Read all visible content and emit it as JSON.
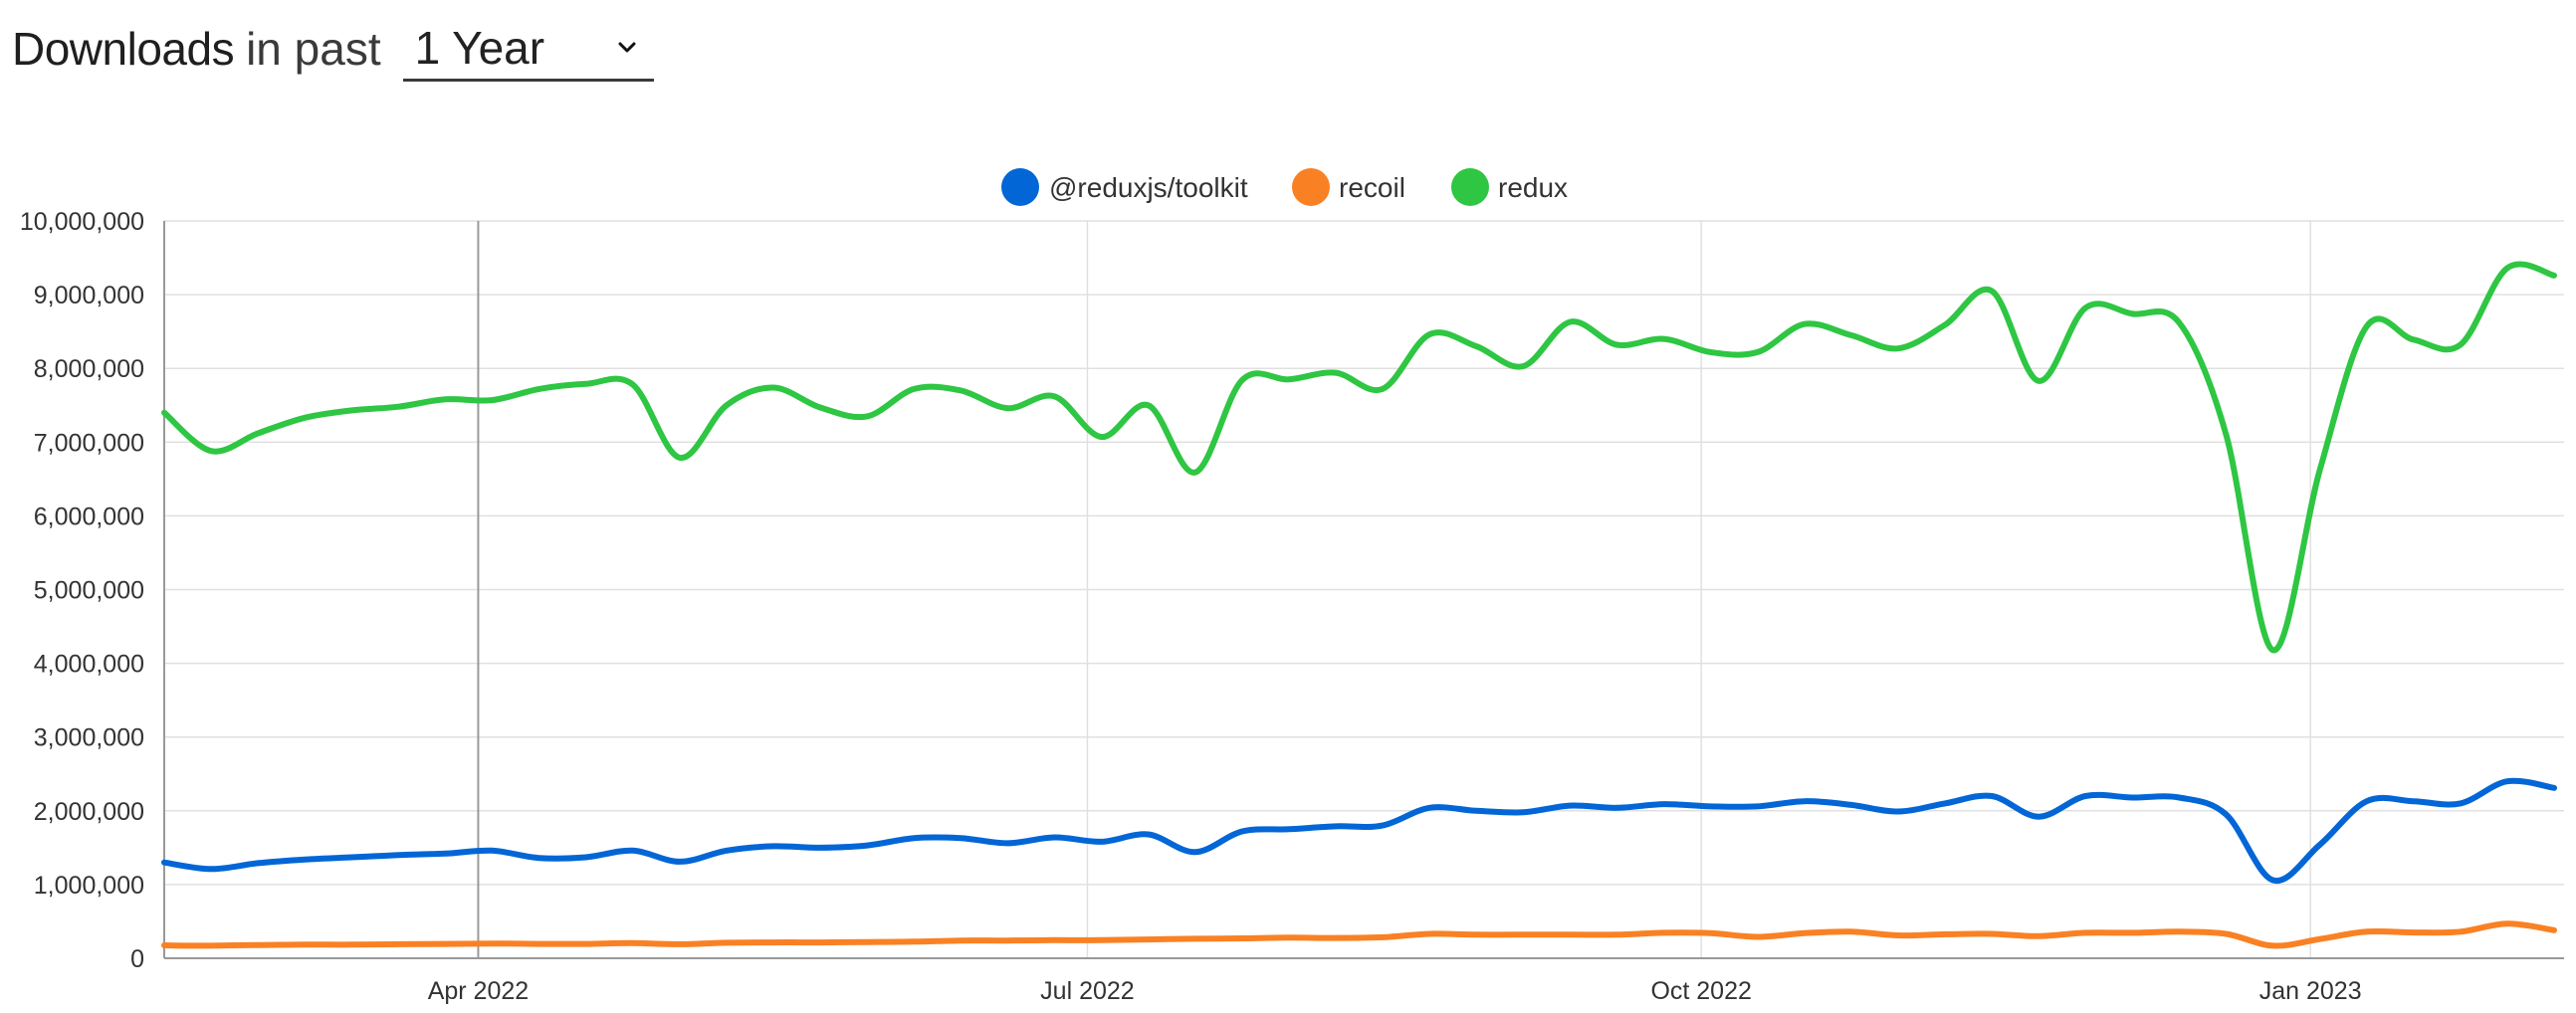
{
  "header": {
    "title_strong": "Downloads",
    "title_light": "in past",
    "range_selected": "1 Year",
    "dropdown_icon": "chevron-down-icon"
  },
  "colors": {
    "@reduxjs/toolkit": "#0366d6",
    "recoil": "#f98124",
    "redux": "#2ec642",
    "grid": "#e0e0e0",
    "axis": "#999999"
  },
  "chart_data": {
    "type": "line",
    "title": "",
    "xlabel": "",
    "ylabel": "",
    "ylim": [
      0,
      10000000
    ],
    "y_ticks": [
      0,
      1000000,
      2000000,
      3000000,
      4000000,
      5000000,
      6000000,
      7000000,
      8000000,
      9000000,
      10000000
    ],
    "y_tick_labels": [
      "0",
      "1,000,000",
      "2,000,000",
      "3,000,000",
      "4,000,000",
      "5,000,000",
      "6,000,000",
      "7,000,000",
      "8,000,000",
      "9,000,000",
      "10,000,000"
    ],
    "x_tick_labels": [
      "Apr 2022",
      "Jul 2022",
      "Oct 2022",
      "Jan 2023"
    ],
    "x_tick_positions": [
      7.3,
      20.3,
      33.4,
      46.4
    ],
    "xlim": [
      0.6,
      51.6
    ],
    "grid": true,
    "legend_position": "top-center",
    "series": [
      {
        "name": "@reduxjs/toolkit",
        "x": [
          0.6,
          1.6,
          2.6,
          3.6,
          4.6,
          5.6,
          6.6,
          7.6,
          8.6,
          9.6,
          10.6,
          11.6,
          12.6,
          13.6,
          14.6,
          15.6,
          16.6,
          17.6,
          18.6,
          19.6,
          20.6,
          21.6,
          22.6,
          23.6,
          24.6,
          25.6,
          26.6,
          27.6,
          28.6,
          29.6,
          30.6,
          31.6,
          32.6,
          33.6,
          34.6,
          35.6,
          36.6,
          37.6,
          38.6,
          39.6,
          40.6,
          41.6,
          42.6,
          43.6,
          44.6,
          45.6,
          46.6,
          47.6,
          48.6,
          49.6,
          50.6,
          51.6
        ],
        "values": [
          1300000,
          1210000,
          1290000,
          1340000,
          1370000,
          1400000,
          1420000,
          1460000,
          1360000,
          1370000,
          1460000,
          1310000,
          1460000,
          1520000,
          1500000,
          1530000,
          1630000,
          1630000,
          1560000,
          1640000,
          1580000,
          1680000,
          1440000,
          1720000,
          1750000,
          1790000,
          1800000,
          2040000,
          2000000,
          1980000,
          2070000,
          2040000,
          2090000,
          2060000,
          2060000,
          2130000,
          2080000,
          1990000,
          2100000,
          2200000,
          1920000,
          2200000,
          2180000,
          2180000,
          1950000,
          1060000,
          1540000,
          2130000,
          2130000,
          2100000,
          2400000,
          2310000
        ]
      },
      {
        "name": "recoil",
        "x": [
          0.6,
          1.6,
          2.6,
          3.6,
          4.6,
          5.6,
          6.6,
          7.6,
          8.6,
          9.6,
          10.6,
          11.6,
          12.6,
          13.6,
          14.6,
          15.6,
          16.6,
          17.6,
          18.6,
          19.6,
          20.6,
          21.6,
          22.6,
          23.6,
          24.6,
          25.6,
          26.6,
          27.6,
          28.6,
          29.6,
          30.6,
          31.6,
          32.6,
          33.6,
          34.6,
          35.6,
          36.6,
          37.6,
          38.6,
          39.6,
          40.6,
          41.6,
          42.6,
          43.6,
          44.6,
          45.6,
          46.6,
          47.6,
          48.6,
          49.6,
          50.6,
          51.6
        ],
        "values": [
          175000,
          170000,
          180000,
          185000,
          185000,
          190000,
          195000,
          200000,
          195000,
          195000,
          205000,
          190000,
          210000,
          215000,
          215000,
          220000,
          225000,
          240000,
          240000,
          245000,
          245000,
          255000,
          265000,
          270000,
          280000,
          275000,
          285000,
          330000,
          320000,
          320000,
          320000,
          320000,
          345000,
          340000,
          290000,
          340000,
          360000,
          310000,
          325000,
          330000,
          300000,
          345000,
          345000,
          360000,
          330000,
          170000,
          260000,
          360000,
          350000,
          360000,
          470000,
          380000
        ]
      },
      {
        "name": "redux",
        "x": [
          0.6,
          1.6,
          2.6,
          3.6,
          4.6,
          5.6,
          6.6,
          7.6,
          8.6,
          9.6,
          10.6,
          11.6,
          12.6,
          13.6,
          14.6,
          15.6,
          16.6,
          17.6,
          18.6,
          19.6,
          20.6,
          21.6,
          22.6,
          23.6,
          24.6,
          25.6,
          26.6,
          27.6,
          28.6,
          29.6,
          30.6,
          31.6,
          32.6,
          33.6,
          34.6,
          35.6,
          36.6,
          37.6,
          38.6,
          39.6,
          40.6,
          41.6,
          42.6,
          43.6,
          44.6,
          45.6,
          46.6,
          47.6,
          48.6,
          49.6,
          50.6,
          51.6
        ],
        "values": [
          7400000,
          6880000,
          7120000,
          7330000,
          7430000,
          7480000,
          7580000,
          7570000,
          7720000,
          7790000,
          7780000,
          6790000,
          7500000,
          7740000,
          7470000,
          7350000,
          7720000,
          7700000,
          7460000,
          7620000,
          7070000,
          7500000,
          6590000,
          7840000,
          7850000,
          7940000,
          7720000,
          8460000,
          8300000,
          8030000,
          8630000,
          8320000,
          8400000,
          8220000,
          8220000,
          8600000,
          8450000,
          8270000,
          8590000,
          9050000,
          7830000,
          8820000,
          8740000,
          8620000,
          7100000,
          4180000,
          6620000,
          8570000,
          8390000,
          8320000,
          9360000,
          9260000
        ]
      }
    ]
  }
}
